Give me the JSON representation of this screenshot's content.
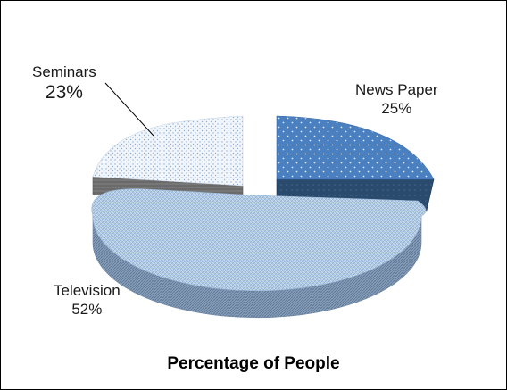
{
  "chart_data": {
    "type": "pie",
    "style": "3d-exploded",
    "title": "Percentage of People",
    "slices": [
      {
        "name": "News Paper",
        "value": 25,
        "label": "25%",
        "color": "#4a7fc0",
        "side_color": "#2a4a6e"
      },
      {
        "name": "Television",
        "value": 52,
        "label": "52%",
        "color": "#a9c4e0",
        "side_color": "#7f96b4"
      },
      {
        "name": "Seminars",
        "value": 23,
        "label": "23%",
        "color": "#e9f0f8",
        "side_color": "#707070"
      }
    ]
  }
}
